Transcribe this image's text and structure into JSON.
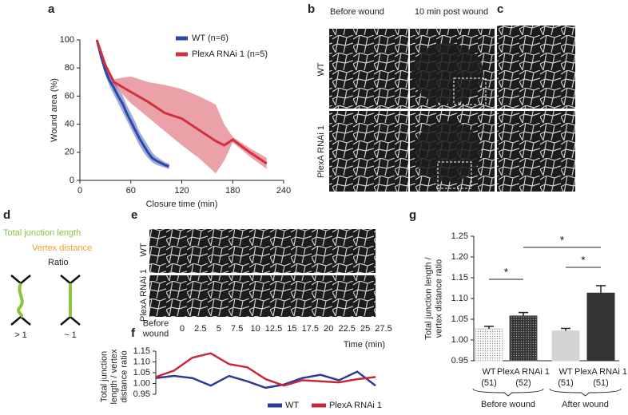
{
  "figure": {
    "panels": [
      "a",
      "b",
      "c",
      "d",
      "e",
      "f",
      "g"
    ],
    "b": {
      "columns": [
        "Before wound",
        "10 min post wound"
      ],
      "rows": [
        "WT",
        "PlexA RNAi 1"
      ]
    },
    "d": {
      "junction": "Total junction length",
      "vertex": "Vertex distance",
      "ratio": "Ratio",
      "left": "> 1",
      "right": "~ 1"
    },
    "e": {
      "rows": [
        "WT",
        "PlexA RNAi 1"
      ]
    }
  },
  "chart_data": [
    {
      "type": "line",
      "xlabel": "Closure time (min)",
      "ylabel": "Wound area (%)",
      "xlim": [
        0,
        240
      ],
      "xticks": [
        0,
        60,
        120,
        180,
        240
      ],
      "ylim": [
        0,
        100
      ],
      "yticks": [
        0,
        20,
        40,
        60,
        80,
        100
      ],
      "series": [
        {
          "name": "WT (n=6)",
          "color": "#2948a8",
          "x": [
            20,
            25,
            30,
            35,
            40,
            45,
            50,
            55,
            60,
            65,
            70,
            75,
            80,
            85,
            90,
            100,
            105
          ],
          "values": [
            100,
            88,
            78,
            71,
            66,
            60,
            55,
            48,
            42,
            36,
            30,
            25,
            20,
            16,
            14,
            11,
            10
          ],
          "lower": [
            100,
            86,
            75,
            67,
            61,
            55,
            49,
            43,
            37,
            31,
            25,
            20,
            16,
            13,
            11,
            9,
            8
          ],
          "upper": [
            100,
            90,
            81,
            75,
            71,
            65,
            61,
            54,
            48,
            42,
            35,
            30,
            25,
            20,
            17,
            13,
            12
          ]
        },
        {
          "name": "PlexA RNAi 1 (n=5)",
          "color": "#d0303f",
          "x": [
            20,
            30,
            40,
            60,
            80,
            100,
            120,
            140,
            160,
            170,
            180,
            200,
            220
          ],
          "values": [
            100,
            82,
            70,
            63,
            56,
            48,
            44,
            36,
            28,
            25,
            29,
            20,
            12
          ],
          "lower": [
            100,
            80,
            68,
            55,
            45,
            35,
            25,
            16,
            5,
            14,
            27,
            17,
            8
          ],
          "upper": [
            100,
            84,
            72,
            74,
            70,
            68,
            65,
            60,
            54,
            40,
            31,
            23,
            16
          ]
        }
      ]
    },
    {
      "type": "line",
      "xlabel": "Time (min)",
      "ylabel": "Total junction length / vertex distance ratio",
      "categories": [
        "Before wound",
        "0",
        "2.5",
        "5",
        "7.5",
        "10",
        "12.5",
        "15",
        "17.5",
        "20",
        "22.5",
        "25",
        "27.5"
      ],
      "ylim": [
        0.95,
        1.15
      ],
      "yticks": [
        0.95,
        {
          "value": 1,
          "label": "1.00"
        },
        1.05,
        {
          "value": 1.1,
          "label": "1.10"
        },
        1.15
      ],
      "series": [
        {
          "name": "WT",
          "color": "#2d3a9a",
          "values": [
            1.025,
            1.035,
            1.025,
            0.99,
            1.035,
            1.01,
            0.98,
            0.995,
            1.025,
            1.04,
            1.015,
            1.055,
            0.99
          ]
        },
        {
          "name": "PlexA RNAi 1",
          "color": "#c8283a",
          "values": [
            1.03,
            1.06,
            1.12,
            1.14,
            1.09,
            1.075,
            1.02,
            0.99,
            1.015,
            1.01,
            1.005,
            1.02,
            1.03
          ]
        }
      ]
    },
    {
      "type": "bar",
      "ylabel": "Total junction length / vertex distance ratio",
      "categories": [
        "WT",
        "PlexA RNAi 1",
        "WT",
        "PlexA RNAi 1"
      ],
      "counts": [
        "(51)",
        "(52)",
        "(51)",
        "(51)"
      ],
      "groups": [
        "Before wound",
        "After wound"
      ],
      "values": [
        1.027,
        1.058,
        1.022,
        1.113
      ],
      "errors": [
        0.006,
        0.008,
        0.006,
        0.018
      ],
      "colors": [
        "#dcdcdc",
        "#555555",
        "#d4d4d4",
        "#333333"
      ],
      "ylim": [
        0.95,
        1.25
      ],
      "yticks": [
        0.95,
        {
          "value": 1,
          "label": "1.00"
        },
        1.05,
        {
          "value": 1.1,
          "label": "1.10"
        },
        1.15,
        {
          "value": 1.2,
          "label": "1.20"
        },
        1.25
      ],
      "annotations": [
        "*",
        "*",
        "*"
      ]
    }
  ]
}
